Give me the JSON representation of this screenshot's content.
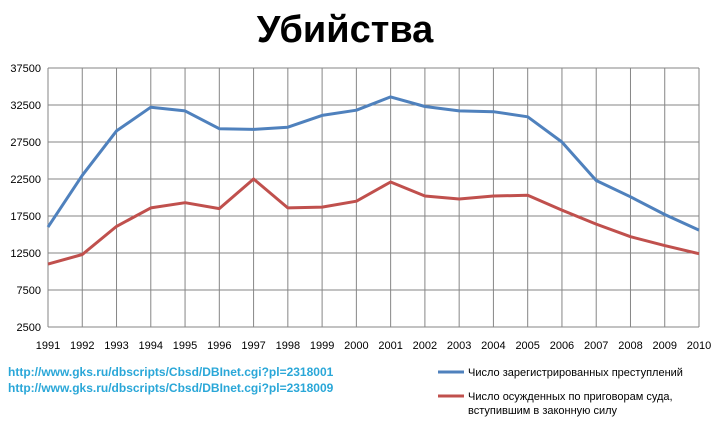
{
  "chart_data": {
    "type": "line",
    "title": "Убийства",
    "xlabel": "",
    "ylabel": "",
    "x": [
      "1991",
      "1992",
      "1993",
      "1994",
      "1995",
      "1996",
      "1997",
      "1998",
      "1999",
      "2000",
      "2001",
      "2002",
      "2003",
      "2004",
      "2005",
      "2006",
      "2007",
      "2008",
      "2009",
      "2010"
    ],
    "ylim": [
      2500,
      37500
    ],
    "yticks": [
      "2500",
      "7500",
      "12500",
      "17500",
      "22500",
      "27500",
      "32500",
      "37500"
    ],
    "grid": true,
    "legend": "bottom-right",
    "series": [
      {
        "name": "Число зарегистрированных преступлений",
        "color": "#4f81bd",
        "values": [
          16000,
          23000,
          29000,
          32200,
          31700,
          29300,
          29200,
          29500,
          31100,
          31800,
          33600,
          32300,
          31700,
          31600,
          30900,
          27500,
          22300,
          20100,
          17700,
          15600
        ]
      },
      {
        "name": "Число осужденных по приговорам суда,",
        "name_line2": "вступившим  в законную силу",
        "color": "#c0504d",
        "values": [
          11000,
          12300,
          16100,
          18600,
          19300,
          18500,
          22500,
          18600,
          18700,
          19500,
          22100,
          20200,
          19800,
          20200,
          20300,
          18300,
          16400,
          14700,
          13500,
          12400
        ]
      }
    ]
  },
  "sources": [
    "http://www.gks.ru/dbscripts/Cbsd/DBInet.cgi?pl=2318001",
    "http://www.gks.ru/dbscripts/Cbsd/DBInet.cgi?pl=2318009"
  ]
}
